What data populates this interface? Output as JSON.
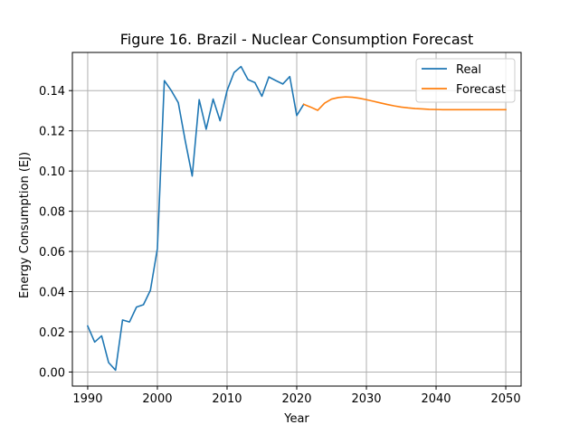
{
  "chart_data": {
    "type": "line",
    "title": "Figure 16. Brazil - Nuclear Consumption Forecast",
    "xlabel": "Year",
    "ylabel": "Energy Consumption (EJ)",
    "xlim": [
      1987.8,
      2052.2
    ],
    "ylim": [
      -0.007,
      0.159
    ],
    "xticks": [
      1990,
      2000,
      2010,
      2020,
      2030,
      2040,
      2050
    ],
    "xtick_labels": [
      "1990",
      "2000",
      "2010",
      "2020",
      "2030",
      "2040",
      "2050"
    ],
    "yticks": [
      0.0,
      0.02,
      0.04,
      0.06,
      0.08,
      0.1,
      0.12,
      0.14
    ],
    "ytick_labels": [
      "0.00",
      "0.02",
      "0.04",
      "0.06",
      "0.08",
      "0.10",
      "0.12",
      "0.14"
    ],
    "grid": true,
    "legend_position": "top-right",
    "series": [
      {
        "name": "Real",
        "color": "#1f77b4",
        "x": [
          1990,
          1991,
          1992,
          1993,
          1994,
          1995,
          1996,
          1997,
          1998,
          1999,
          2000,
          2001,
          2002,
          2003,
          2004,
          2005,
          2006,
          2007,
          2008,
          2009,
          2010,
          2011,
          2012,
          2013,
          2014,
          2015,
          2016,
          2017,
          2018,
          2019,
          2020,
          2021
        ],
        "y": [
          0.0229,
          0.0149,
          0.018,
          0.0047,
          0.0009,
          0.0259,
          0.0249,
          0.0323,
          0.0335,
          0.0407,
          0.0614,
          0.145,
          0.14,
          0.134,
          0.115,
          0.0975,
          0.1355,
          0.1208,
          0.1358,
          0.125,
          0.14,
          0.149,
          0.152,
          0.1455,
          0.144,
          0.1372,
          0.1468,
          0.145,
          0.1433,
          0.147,
          0.1276,
          0.1332
        ]
      },
      {
        "name": "Forecast",
        "color": "#ff7f0e",
        "x": [
          2021,
          2022,
          2023,
          2024,
          2025,
          2026,
          2027,
          2028,
          2029,
          2030,
          2031,
          2032,
          2033,
          2034,
          2035,
          2036,
          2037,
          2038,
          2039,
          2040,
          2041,
          2042,
          2043,
          2044,
          2045,
          2046,
          2047,
          2048,
          2049,
          2050
        ],
        "y": [
          0.1332,
          0.1318,
          0.1302,
          0.1338,
          0.1358,
          0.1366,
          0.1369,
          0.1367,
          0.1362,
          0.1355,
          0.1347,
          0.1339,
          0.1331,
          0.1324,
          0.1318,
          0.1314,
          0.1311,
          0.1309,
          0.1307,
          0.1306,
          0.1305,
          0.1305,
          0.1305,
          0.1305,
          0.1305,
          0.1305,
          0.1305,
          0.1305,
          0.1305,
          0.1305
        ]
      }
    ]
  }
}
